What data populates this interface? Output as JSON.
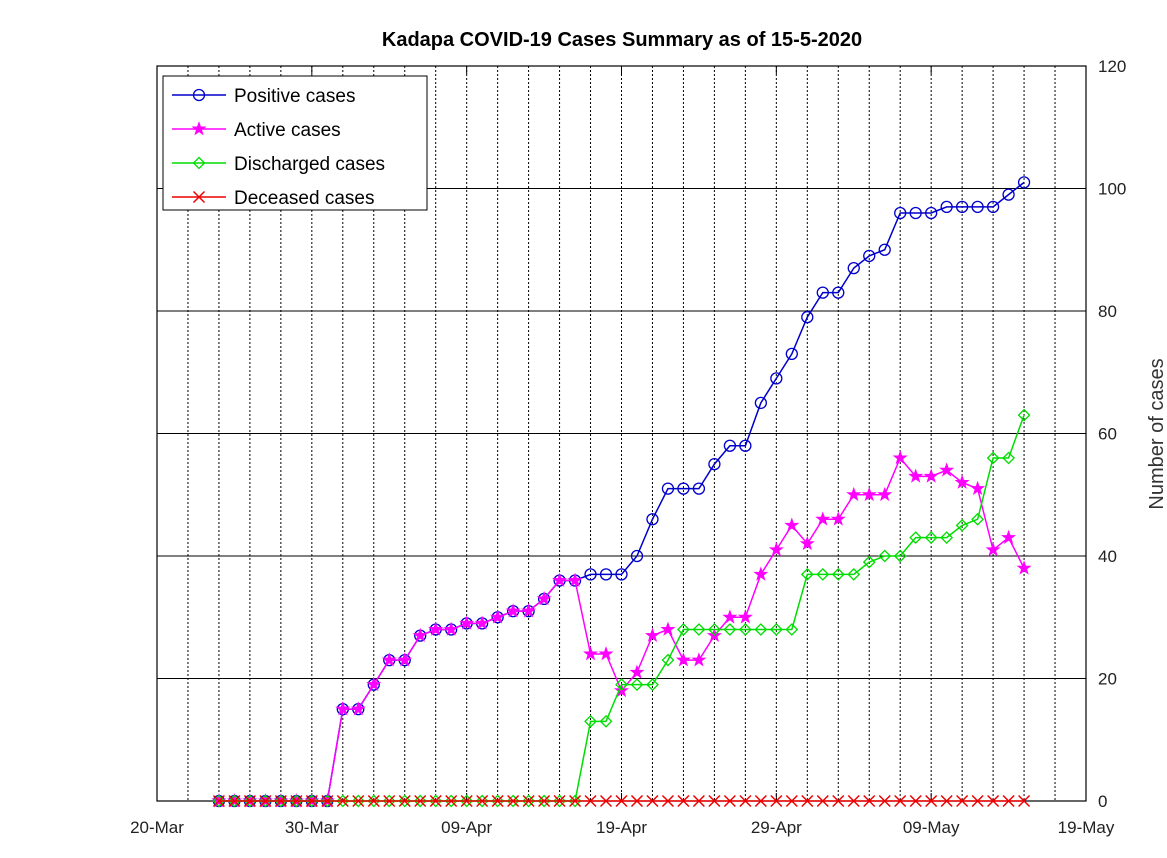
{
  "chart_data": {
    "type": "line",
    "title": "Kadapa COVID-19 Cases Summary as of 15-5-2020",
    "ylabel": "Number of cases",
    "xlabel": "",
    "x_tick_labels": [
      "20-Mar",
      "30-Mar",
      "09-Apr",
      "19-Apr",
      "29-Apr",
      "09-May",
      "19-May"
    ],
    "x_tick_days": [
      0,
      10,
      20,
      30,
      40,
      50,
      60
    ],
    "x_range_days": [
      0,
      60
    ],
    "x_start_date": "20-Mar-2020",
    "x": [
      4,
      5,
      6,
      7,
      8,
      9,
      10,
      11,
      12,
      13,
      14,
      15,
      16,
      17,
      18,
      19,
      20,
      21,
      22,
      23,
      24,
      25,
      26,
      27,
      28,
      29,
      30,
      31,
      32,
      33,
      34,
      35,
      36,
      37,
      38,
      39,
      40,
      41,
      42,
      43,
      44,
      45,
      46,
      47,
      48,
      49,
      50,
      51,
      52,
      53,
      54,
      55,
      56
    ],
    "ylim": [
      0,
      120
    ],
    "y_ticks": [
      0,
      20,
      40,
      60,
      80,
      100,
      120
    ],
    "grid": "on",
    "legend_position": "top-left",
    "series": [
      {
        "name": "Positive cases",
        "color": "#0000cc",
        "marker": "circle",
        "values": [
          0,
          0,
          0,
          0,
          0,
          0,
          0,
          0,
          15,
          15,
          19,
          23,
          23,
          27,
          28,
          28,
          29,
          29,
          30,
          31,
          31,
          33,
          36,
          36,
          37,
          37,
          37,
          40,
          46,
          51,
          51,
          51,
          55,
          58,
          58,
          65,
          69,
          73,
          79,
          83,
          83,
          87,
          89,
          90,
          96,
          96,
          96,
          97,
          97,
          97,
          97,
          99,
          101
        ]
      },
      {
        "name": "Active cases",
        "color": "#ff00ff",
        "marker": "star",
        "values": [
          0,
          0,
          0,
          0,
          0,
          0,
          0,
          0,
          15,
          15,
          19,
          23,
          23,
          27,
          28,
          28,
          29,
          29,
          30,
          31,
          31,
          33,
          36,
          36,
          24,
          24,
          18,
          21,
          27,
          28,
          23,
          23,
          27,
          30,
          30,
          37,
          41,
          45,
          42,
          46,
          46,
          50,
          50,
          50,
          56,
          53,
          53,
          54,
          52,
          51,
          41,
          43,
          38
        ]
      },
      {
        "name": "Discharged cases",
        "color": "#00dd00",
        "marker": "diamond",
        "values": [
          0,
          0,
          0,
          0,
          0,
          0,
          0,
          0,
          0,
          0,
          0,
          0,
          0,
          0,
          0,
          0,
          0,
          0,
          0,
          0,
          0,
          0,
          0,
          0,
          13,
          13,
          19,
          19,
          19,
          23,
          28,
          28,
          28,
          28,
          28,
          28,
          28,
          28,
          37,
          37,
          37,
          37,
          39,
          40,
          40,
          43,
          43,
          43,
          45,
          46,
          56,
          56,
          63
        ]
      },
      {
        "name": "Deceased cases",
        "color": "#ee0000",
        "marker": "x",
        "values": [
          0,
          0,
          0,
          0,
          0,
          0,
          0,
          0,
          0,
          0,
          0,
          0,
          0,
          0,
          0,
          0,
          0,
          0,
          0,
          0,
          0,
          0,
          0,
          0,
          0,
          0,
          0,
          0,
          0,
          0,
          0,
          0,
          0,
          0,
          0,
          0,
          0,
          0,
          0,
          0,
          0,
          0,
          0,
          0,
          0,
          0,
          0,
          0,
          0,
          0,
          0,
          0,
          0
        ]
      }
    ]
  }
}
